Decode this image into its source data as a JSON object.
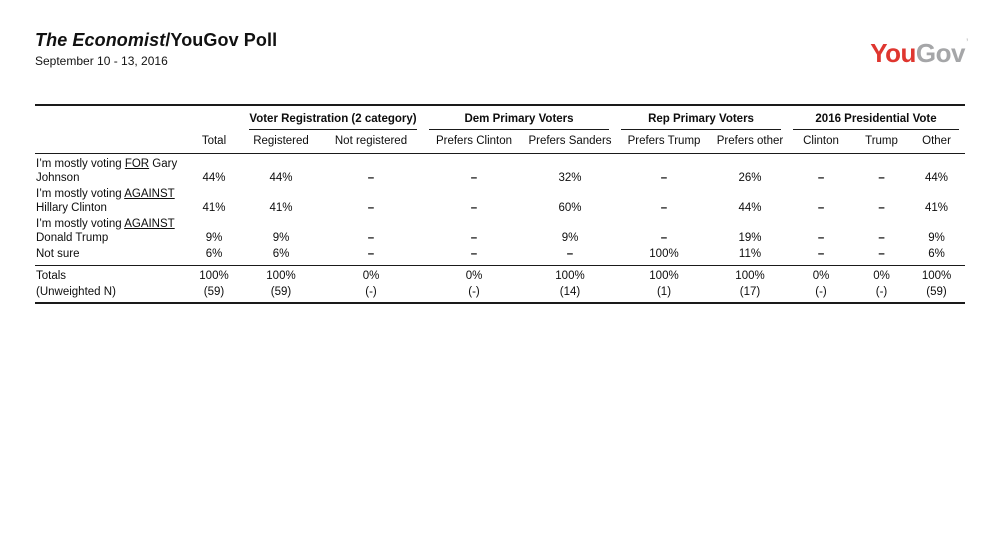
{
  "header": {
    "title_italic": "The Economist",
    "title_rest": "/YouGov Poll",
    "date": "September 10 - 13, 2016",
    "logo": {
      "part1": "You",
      "part2": "Gov",
      "tm_mark": "’",
      "part1_color": "#df362f",
      "part2_color": "#a5a6a8"
    }
  },
  "table": {
    "group_headers": [
      {
        "label": "",
        "span": 2,
        "underline": false
      },
      {
        "label": "Voter Registration (2 category)",
        "span": 2,
        "underline": true
      },
      {
        "label": "Dem Primary Voters",
        "span": 2,
        "underline": true
      },
      {
        "label": "Rep Primary Voters",
        "span": 2,
        "underline": true
      },
      {
        "label": "2016 Presidential Vote",
        "span": 3,
        "underline": true
      }
    ],
    "column_headers": [
      "",
      "Total",
      "Registered",
      "Not registered",
      "Prefers Clinton",
      "Prefers Sanders",
      "Prefers Trump",
      "Prefers other",
      "Clinton",
      "Trump",
      "Other"
    ],
    "rows": [
      {
        "label_segments": [
          {
            "t": "I’m mostly voting "
          },
          {
            "t": "FOR",
            "u": true
          },
          {
            "t": " Gary"
          },
          {
            "br": true
          },
          {
            "t": "Johnson"
          }
        ],
        "values": [
          "44%",
          "44%",
          "–",
          "–",
          "32%",
          "–",
          "26%",
          "–",
          "–",
          "44%"
        ]
      },
      {
        "label_segments": [
          {
            "t": "I’m mostly voting "
          },
          {
            "t": "AGAINST",
            "u": true
          },
          {
            "br": true
          },
          {
            "t": "Hillary Clinton"
          }
        ],
        "values": [
          "41%",
          "41%",
          "–",
          "–",
          "60%",
          "–",
          "44%",
          "–",
          "–",
          "41%"
        ]
      },
      {
        "label_segments": [
          {
            "t": "I’m mostly voting "
          },
          {
            "t": "AGAINST",
            "u": true
          },
          {
            "br": true
          },
          {
            "t": "Donald Trump"
          }
        ],
        "values": [
          "9%",
          "9%",
          "–",
          "–",
          "9%",
          "–",
          "19%",
          "–",
          "–",
          "9%"
        ]
      },
      {
        "label_segments": [
          {
            "t": "Not sure"
          }
        ],
        "values": [
          "6%",
          "6%",
          "–",
          "–",
          "–",
          "100%",
          "11%",
          "–",
          "–",
          "6%"
        ]
      }
    ],
    "totals_rows": [
      {
        "label": "Totals",
        "values": [
          "100%",
          "100%",
          "0%",
          "0%",
          "100%",
          "100%",
          "100%",
          "0%",
          "0%",
          "100%"
        ]
      },
      {
        "label": "(Unweighted N)",
        "values": [
          "(59)",
          "(59)",
          "(-)",
          "(-)",
          "(14)",
          "(1)",
          "(17)",
          "(-)",
          "(-)",
          "(59)"
        ]
      }
    ]
  }
}
